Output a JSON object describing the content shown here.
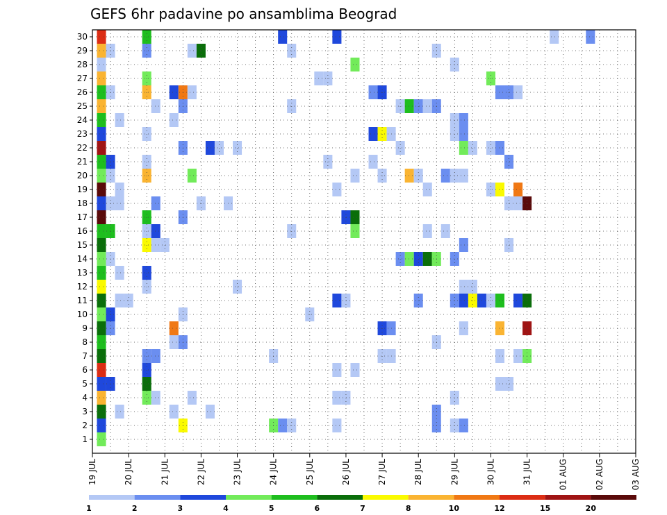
{
  "chart_data": {
    "type": "heatmap",
    "title": "GEFS 6hr padavine po ansamblima Beograd",
    "y_ticks": [
      "1",
      "2",
      "3",
      "4",
      "5",
      "6",
      "7",
      "8",
      "9",
      "10",
      "11",
      "12",
      "13",
      "14",
      "15",
      "16",
      "17",
      "18",
      "19",
      "20",
      "21",
      "22",
      "23",
      "24",
      "25",
      "26",
      "27",
      "28",
      "29",
      "30"
    ],
    "x_ticks": [
      "19 JUL",
      "20 JUL",
      "21 JUL",
      "22 JUL",
      "23 JUL",
      "24 JUL",
      "25 JUL",
      "26 JUL",
      "27 JUL",
      "28 JUL",
      "29 JUL",
      "30 JUL",
      "31 JUL",
      "01 AUG",
      "02 AUG",
      "03 AUG"
    ],
    "x_range_days": [
      0,
      15
    ],
    "y_range": [
      0.5,
      30.5
    ],
    "grid": true,
    "legend": {
      "position": "bottom",
      "bounds": [
        "1",
        "2",
        "3",
        "4",
        "5",
        "6",
        "7",
        "8",
        "10",
        "12",
        "15",
        "20"
      ],
      "colors": [
        "#b4c8f5",
        "#6b8ef0",
        "#1f48dc",
        "#72eb5a",
        "#1ebe1e",
        "#0a6e0a",
        "#fafa00",
        "#fab432",
        "#f07814",
        "#dc2d14",
        "#a01414",
        "#5a0a0a"
      ]
    },
    "cells": [
      {
        "member": 30,
        "t": 1,
        "c": 9
      },
      {
        "member": 30,
        "t": 6,
        "c": 4
      },
      {
        "member": 30,
        "t": 21,
        "c": 2
      },
      {
        "member": 30,
        "t": 27,
        "c": 2
      },
      {
        "member": 30,
        "t": 51,
        "c": 0
      },
      {
        "member": 30,
        "t": 55,
        "c": 1
      },
      {
        "member": 29,
        "t": 1,
        "c": 7
      },
      {
        "member": 29,
        "t": 2,
        "c": 0
      },
      {
        "member": 29,
        "t": 6,
        "c": 1
      },
      {
        "member": 29,
        "t": 11,
        "c": 0
      },
      {
        "member": 29,
        "t": 12,
        "c": 5
      },
      {
        "member": 29,
        "t": 22,
        "c": 0
      },
      {
        "member": 29,
        "t": 38,
        "c": 0
      },
      {
        "member": 28,
        "t": 1,
        "c": 0
      },
      {
        "member": 28,
        "t": 29,
        "c": 3
      },
      {
        "member": 28,
        "t": 40,
        "c": 0
      },
      {
        "member": 27,
        "t": 1,
        "c": 7
      },
      {
        "member": 27,
        "t": 6,
        "c": 3
      },
      {
        "member": 27,
        "t": 25,
        "c": 0
      },
      {
        "member": 27,
        "t": 26,
        "c": 0
      },
      {
        "member": 27,
        "t": 44,
        "c": 3
      },
      {
        "member": 26,
        "t": 1,
        "c": 4
      },
      {
        "member": 26,
        "t": 2,
        "c": 0
      },
      {
        "member": 26,
        "t": 6,
        "c": 7
      },
      {
        "member": 26,
        "t": 9,
        "c": 2
      },
      {
        "member": 26,
        "t": 10,
        "c": 8
      },
      {
        "member": 26,
        "t": 11,
        "c": 0
      },
      {
        "member": 26,
        "t": 31,
        "c": 1
      },
      {
        "member": 26,
        "t": 32,
        "c": 2
      },
      {
        "member": 26,
        "t": 45,
        "c": 1
      },
      {
        "member": 26,
        "t": 46,
        "c": 1
      },
      {
        "member": 26,
        "t": 47,
        "c": 0
      },
      {
        "member": 25,
        "t": 1,
        "c": 7
      },
      {
        "member": 25,
        "t": 7,
        "c": 0
      },
      {
        "member": 25,
        "t": 10,
        "c": 1
      },
      {
        "member": 25,
        "t": 22,
        "c": 0
      },
      {
        "member": 25,
        "t": 34,
        "c": 0
      },
      {
        "member": 25,
        "t": 35,
        "c": 4
      },
      {
        "member": 25,
        "t": 36,
        "c": 1
      },
      {
        "member": 25,
        "t": 37,
        "c": 0
      },
      {
        "member": 25,
        "t": 38,
        "c": 1
      },
      {
        "member": 24,
        "t": 1,
        "c": 4
      },
      {
        "member": 24,
        "t": 3,
        "c": 0
      },
      {
        "member": 24,
        "t": 9,
        "c": 0
      },
      {
        "member": 24,
        "t": 40,
        "c": 0
      },
      {
        "member": 24,
        "t": 41,
        "c": 1
      },
      {
        "member": 23,
        "t": 1,
        "c": 2
      },
      {
        "member": 23,
        "t": 6,
        "c": 0
      },
      {
        "member": 23,
        "t": 31,
        "c": 2
      },
      {
        "member": 23,
        "t": 32,
        "c": 6
      },
      {
        "member": 23,
        "t": 33,
        "c": 0
      },
      {
        "member": 23,
        "t": 40,
        "c": 0
      },
      {
        "member": 23,
        "t": 41,
        "c": 1
      },
      {
        "member": 22,
        "t": 1,
        "c": 10
      },
      {
        "member": 22,
        "t": 10,
        "c": 1
      },
      {
        "member": 22,
        "t": 13,
        "c": 2
      },
      {
        "member": 22,
        "t": 14,
        "c": 0
      },
      {
        "member": 22,
        "t": 16,
        "c": 0
      },
      {
        "member": 22,
        "t": 34,
        "c": 0
      },
      {
        "member": 22,
        "t": 41,
        "c": 3
      },
      {
        "member": 22,
        "t": 42,
        "c": 0
      },
      {
        "member": 22,
        "t": 44,
        "c": 0
      },
      {
        "member": 22,
        "t": 45,
        "c": 1
      },
      {
        "member": 21,
        "t": 1,
        "c": 4
      },
      {
        "member": 21,
        "t": 2,
        "c": 2
      },
      {
        "member": 21,
        "t": 6,
        "c": 0
      },
      {
        "member": 21,
        "t": 26,
        "c": 0
      },
      {
        "member": 21,
        "t": 31,
        "c": 0
      },
      {
        "member": 21,
        "t": 46,
        "c": 1
      },
      {
        "member": 20,
        "t": 1,
        "c": 3
      },
      {
        "member": 20,
        "t": 2,
        "c": 0
      },
      {
        "member": 20,
        "t": 6,
        "c": 7
      },
      {
        "member": 20,
        "t": 11,
        "c": 3
      },
      {
        "member": 20,
        "t": 29,
        "c": 0
      },
      {
        "member": 20,
        "t": 32,
        "c": 0
      },
      {
        "member": 20,
        "t": 35,
        "c": 7
      },
      {
        "member": 20,
        "t": 36,
        "c": 0
      },
      {
        "member": 20,
        "t": 39,
        "c": 1
      },
      {
        "member": 20,
        "t": 40,
        "c": 0
      },
      {
        "member": 20,
        "t": 41,
        "c": 0
      },
      {
        "member": 19,
        "t": 1,
        "c": 11
      },
      {
        "member": 19,
        "t": 3,
        "c": 0
      },
      {
        "member": 19,
        "t": 27,
        "c": 0
      },
      {
        "member": 19,
        "t": 37,
        "c": 0
      },
      {
        "member": 19,
        "t": 44,
        "c": 0
      },
      {
        "member": 19,
        "t": 45,
        "c": 6
      },
      {
        "member": 19,
        "t": 47,
        "c": 8
      },
      {
        "member": 18,
        "t": 1,
        "c": 2
      },
      {
        "member": 18,
        "t": 2,
        "c": 0
      },
      {
        "member": 18,
        "t": 3,
        "c": 0
      },
      {
        "member": 18,
        "t": 7,
        "c": 1
      },
      {
        "member": 18,
        "t": 12,
        "c": 0
      },
      {
        "member": 18,
        "t": 15,
        "c": 0
      },
      {
        "member": 18,
        "t": 46,
        "c": 0
      },
      {
        "member": 18,
        "t": 47,
        "c": 0
      },
      {
        "member": 18,
        "t": 48,
        "c": 11
      },
      {
        "member": 17,
        "t": 1,
        "c": 11
      },
      {
        "member": 17,
        "t": 6,
        "c": 4
      },
      {
        "member": 17,
        "t": 10,
        "c": 1
      },
      {
        "member": 17,
        "t": 28,
        "c": 2
      },
      {
        "member": 17,
        "t": 29,
        "c": 5
      },
      {
        "member": 16,
        "t": 1,
        "c": 4
      },
      {
        "member": 16,
        "t": 2,
        "c": 4
      },
      {
        "member": 16,
        "t": 6,
        "c": 0
      },
      {
        "member": 16,
        "t": 7,
        "c": 2
      },
      {
        "member": 16,
        "t": 22,
        "c": 0
      },
      {
        "member": 16,
        "t": 29,
        "c": 3
      },
      {
        "member": 16,
        "t": 37,
        "c": 0
      },
      {
        "member": 16,
        "t": 39,
        "c": 0
      },
      {
        "member": 15,
        "t": 1,
        "c": 5
      },
      {
        "member": 15,
        "t": 6,
        "c": 6
      },
      {
        "member": 15,
        "t": 7,
        "c": 0
      },
      {
        "member": 15,
        "t": 8,
        "c": 0
      },
      {
        "member": 15,
        "t": 41,
        "c": 1
      },
      {
        "member": 15,
        "t": 46,
        "c": 0
      },
      {
        "member": 14,
        "t": 1,
        "c": 3
      },
      {
        "member": 14,
        "t": 2,
        "c": 0
      },
      {
        "member": 14,
        "t": 34,
        "c": 1
      },
      {
        "member": 14,
        "t": 35,
        "c": 3
      },
      {
        "member": 14,
        "t": 36,
        "c": 2
      },
      {
        "member": 14,
        "t": 37,
        "c": 5
      },
      {
        "member": 14,
        "t": 38,
        "c": 3
      },
      {
        "member": 14,
        "t": 40,
        "c": 1
      },
      {
        "member": 13,
        "t": 1,
        "c": 4
      },
      {
        "member": 13,
        "t": 3,
        "c": 0
      },
      {
        "member": 13,
        "t": 6,
        "c": 2
      },
      {
        "member": 12,
        "t": 1,
        "c": 6
      },
      {
        "member": 12,
        "t": 6,
        "c": 0
      },
      {
        "member": 12,
        "t": 16,
        "c": 0
      },
      {
        "member": 12,
        "t": 41,
        "c": 0
      },
      {
        "member": 12,
        "t": 42,
        "c": 0
      },
      {
        "member": 11,
        "t": 1,
        "c": 5
      },
      {
        "member": 11,
        "t": 3,
        "c": 0
      },
      {
        "member": 11,
        "t": 4,
        "c": 0
      },
      {
        "member": 11,
        "t": 27,
        "c": 2
      },
      {
        "member": 11,
        "t": 28,
        "c": 0
      },
      {
        "member": 11,
        "t": 36,
        "c": 1
      },
      {
        "member": 11,
        "t": 40,
        "c": 1
      },
      {
        "member": 11,
        "t": 41,
        "c": 2
      },
      {
        "member": 11,
        "t": 42,
        "c": 6
      },
      {
        "member": 11,
        "t": 43,
        "c": 2
      },
      {
        "member": 11,
        "t": 44,
        "c": 0
      },
      {
        "member": 11,
        "t": 45,
        "c": 4
      },
      {
        "member": 11,
        "t": 47,
        "c": 2
      },
      {
        "member": 11,
        "t": 48,
        "c": 5
      },
      {
        "member": 10,
        "t": 1,
        "c": 3
      },
      {
        "member": 10,
        "t": 2,
        "c": 2
      },
      {
        "member": 10,
        "t": 10,
        "c": 0
      },
      {
        "member": 10,
        "t": 24,
        "c": 0
      },
      {
        "member": 9,
        "t": 1,
        "c": 5
      },
      {
        "member": 9,
        "t": 2,
        "c": 1
      },
      {
        "member": 9,
        "t": 9,
        "c": 8
      },
      {
        "member": 9,
        "t": 32,
        "c": 2
      },
      {
        "member": 9,
        "t": 33,
        "c": 1
      },
      {
        "member": 9,
        "t": 41,
        "c": 0
      },
      {
        "member": 9,
        "t": 45,
        "c": 7
      },
      {
        "member": 9,
        "t": 48,
        "c": 10
      },
      {
        "member": 8,
        "t": 1,
        "c": 4
      },
      {
        "member": 8,
        "t": 9,
        "c": 0
      },
      {
        "member": 8,
        "t": 10,
        "c": 1
      },
      {
        "member": 8,
        "t": 38,
        "c": 0
      },
      {
        "member": 7,
        "t": 1,
        "c": 5
      },
      {
        "member": 7,
        "t": 6,
        "c": 1
      },
      {
        "member": 7,
        "t": 7,
        "c": 1
      },
      {
        "member": 7,
        "t": 20,
        "c": 0
      },
      {
        "member": 7,
        "t": 32,
        "c": 0
      },
      {
        "member": 7,
        "t": 33,
        "c": 0
      },
      {
        "member": 7,
        "t": 45,
        "c": 0
      },
      {
        "member": 7,
        "t": 47,
        "c": 0
      },
      {
        "member": 7,
        "t": 48,
        "c": 3
      },
      {
        "member": 6,
        "t": 1,
        "c": 9
      },
      {
        "member": 6,
        "t": 6,
        "c": 2
      },
      {
        "member": 6,
        "t": 27,
        "c": 0
      },
      {
        "member": 6,
        "t": 29,
        "c": 0
      },
      {
        "member": 5,
        "t": 1,
        "c": 2
      },
      {
        "member": 5,
        "t": 2,
        "c": 2
      },
      {
        "member": 5,
        "t": 6,
        "c": 5
      },
      {
        "member": 5,
        "t": 45,
        "c": 0
      },
      {
        "member": 5,
        "t": 46,
        "c": 0
      },
      {
        "member": 4,
        "t": 1,
        "c": 7
      },
      {
        "member": 4,
        "t": 6,
        "c": 3
      },
      {
        "member": 4,
        "t": 7,
        "c": 0
      },
      {
        "member": 4,
        "t": 11,
        "c": 0
      },
      {
        "member": 4,
        "t": 27,
        "c": 0
      },
      {
        "member": 4,
        "t": 28,
        "c": 0
      },
      {
        "member": 4,
        "t": 40,
        "c": 0
      },
      {
        "member": 3,
        "t": 1,
        "c": 5
      },
      {
        "member": 3,
        "t": 3,
        "c": 0
      },
      {
        "member": 3,
        "t": 9,
        "c": 0
      },
      {
        "member": 3,
        "t": 13,
        "c": 0
      },
      {
        "member": 3,
        "t": 38,
        "c": 1
      },
      {
        "member": 2,
        "t": 1,
        "c": 2
      },
      {
        "member": 2,
        "t": 10,
        "c": 6
      },
      {
        "member": 2,
        "t": 20,
        "c": 3
      },
      {
        "member": 2,
        "t": 21,
        "c": 1
      },
      {
        "member": 2,
        "t": 22,
        "c": 0
      },
      {
        "member": 2,
        "t": 27,
        "c": 0
      },
      {
        "member": 2,
        "t": 38,
        "c": 1
      },
      {
        "member": 2,
        "t": 40,
        "c": 0
      },
      {
        "member": 2,
        "t": 41,
        "c": 1
      },
      {
        "member": 1,
        "t": 1,
        "c": 3
      }
    ]
  }
}
